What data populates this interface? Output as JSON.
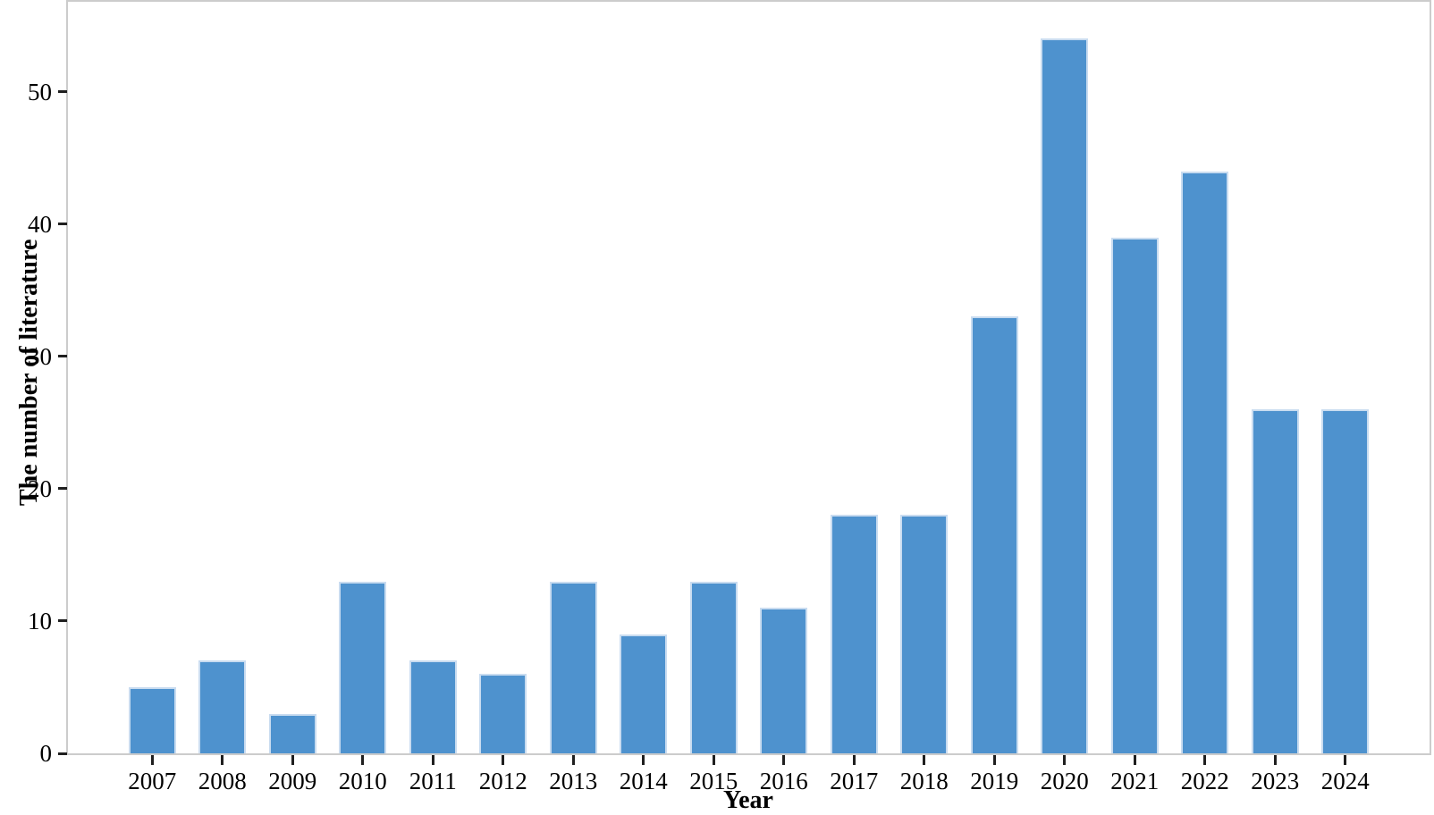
{
  "chart_data": {
    "type": "bar",
    "xlabel": "Year",
    "ylabel": "The number of literature",
    "categories": [
      "2007",
      "2008",
      "2009",
      "2010",
      "2011",
      "2012",
      "2013",
      "2014",
      "2015",
      "2016",
      "2017",
      "2018",
      "2019",
      "2020",
      "2021",
      "2022",
      "2023",
      "2024"
    ],
    "values": [
      5,
      7,
      3,
      13,
      7,
      6,
      13,
      9,
      13,
      11,
      18,
      18,
      33,
      54,
      39,
      44,
      26,
      26
    ],
    "yticks": [
      0,
      10,
      20,
      30,
      40,
      50
    ],
    "ylim": [
      0,
      56.8
    ],
    "grid": false,
    "legend": null,
    "colors": {
      "bar_fill": "#4e92ce",
      "bar_edge": "#c9dcf0",
      "frame": "#cccccc",
      "tick": "#1f1f1f",
      "text": "#000000",
      "background": "#ffffff"
    }
  }
}
